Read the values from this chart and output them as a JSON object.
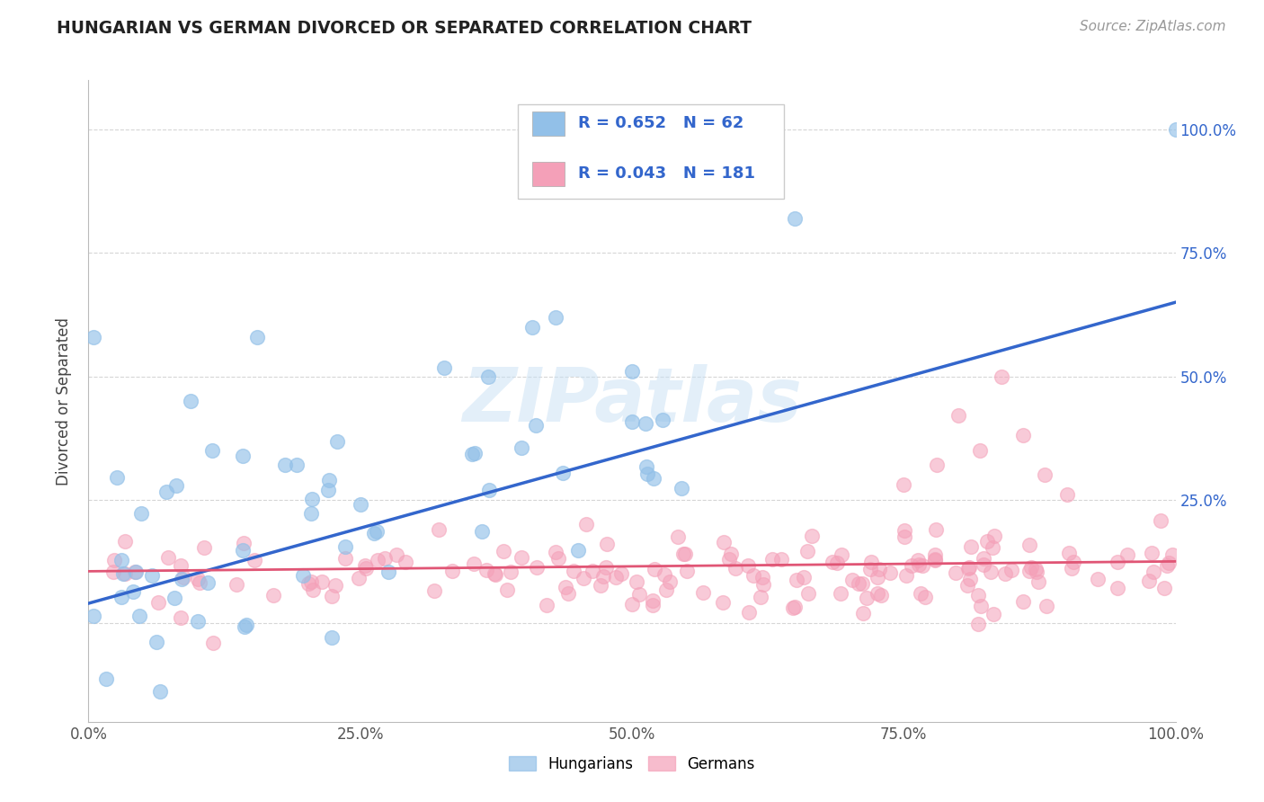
{
  "title": "HUNGARIAN VS GERMAN DIVORCED OR SEPARATED CORRELATION CHART",
  "source": "Source: ZipAtlas.com",
  "ylabel": "Divorced or Separated",
  "watermark": "ZIPatlas",
  "legend_r1": "R = 0.652",
  "legend_n1": "N = 62",
  "legend_r2": "R = 0.043",
  "legend_n2": "N = 181",
  "legend_label1": "Hungarians",
  "legend_label2": "Germans",
  "blue_color": "#92C0E8",
  "pink_color": "#F4A0B8",
  "blue_line_color": "#3366CC",
  "pink_line_color": "#E05575",
  "background_color": "#FFFFFF",
  "grid_color": "#CCCCCC",
  "blue_line_x0": 0.0,
  "blue_line_y0": 0.04,
  "blue_line_x1": 1.0,
  "blue_line_y1": 0.65,
  "pink_line_x0": 0.0,
  "pink_line_y0": 0.105,
  "pink_line_x1": 1.0,
  "pink_line_y1": 0.125,
  "xlim": [
    0.0,
    1.0
  ],
  "ylim_min": -0.2,
  "ylim_max": 1.1,
  "xtick_vals": [
    0.0,
    0.25,
    0.5,
    0.75,
    1.0
  ],
  "xtick_labels": [
    "0.0%",
    "25.0%",
    "50.0%",
    "75.0%",
    "100.0%"
  ],
  "ytick_right_vals": [
    0.25,
    0.5,
    0.75,
    1.0
  ],
  "ytick_right_labels": [
    "25.0%",
    "50.0%",
    "75.0%",
    "100.0%"
  ]
}
